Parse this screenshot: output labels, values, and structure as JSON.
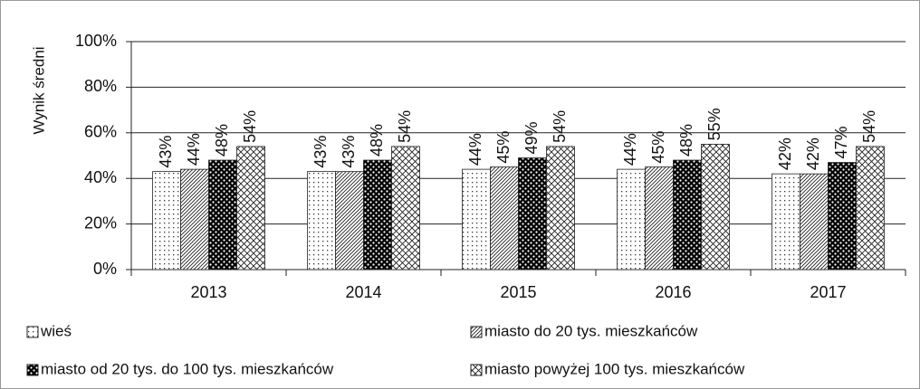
{
  "chart_data": {
    "type": "bar",
    "y_label": "Wynik średni",
    "categories": [
      "2013",
      "2014",
      "2015",
      "2016",
      "2017"
    ],
    "series": [
      {
        "name": "wieś",
        "pattern": "dots",
        "values": [
          43,
          43,
          44,
          44,
          42
        ],
        "value_labels": [
          "43%",
          "43%",
          "44%",
          "44%",
          "42%"
        ]
      },
      {
        "name": "miasto do 20 tys. mieszkańców",
        "pattern": "diagonal",
        "values": [
          44,
          43,
          45,
          45,
          42
        ],
        "value_labels": [
          "44%",
          "43%",
          "45%",
          "45%",
          "42%"
        ]
      },
      {
        "name": "miasto od 20 tys. do 100 tys. mieszkańców",
        "pattern": "checker",
        "values": [
          48,
          48,
          49,
          48,
          47
        ],
        "value_labels": [
          "48%",
          "48%",
          "49%",
          "48%",
          "47%"
        ]
      },
      {
        "name": "miasto powyżej 100 tys. mieszkańców",
        "pattern": "crosshatch",
        "values": [
          54,
          54,
          54,
          55,
          54
        ],
        "value_labels": [
          "54%",
          "54%",
          "54%",
          "55%",
          "54%"
        ]
      }
    ],
    "ylim": [
      0,
      100
    ],
    "yticks": [
      {
        "value": 0,
        "label": "0%"
      },
      {
        "value": 20,
        "label": "20%"
      },
      {
        "value": 40,
        "label": "40%"
      },
      {
        "value": 60,
        "label": "60%"
      },
      {
        "value": 80,
        "label": "80%"
      },
      {
        "value": 100,
        "label": "100%"
      }
    ],
    "grid": true
  }
}
